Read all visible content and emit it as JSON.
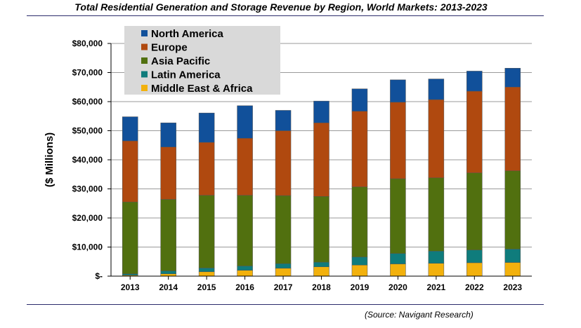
{
  "page": {
    "title": "Total Residential Generation and Storage Revenue by Region, World Markets: 2013-2023",
    "source": "(Source: Navigant Research)"
  },
  "chart_data": {
    "type": "bar",
    "stacked": true,
    "title": "Total Residential Generation and Storage Revenue by Region, World Markets: 2013-2023",
    "xlabel": "",
    "ylabel": "($ Millions)",
    "ylim": [
      0,
      80000
    ],
    "yticks": [
      0,
      10000,
      20000,
      30000,
      40000,
      50000,
      60000,
      70000,
      80000
    ],
    "ytick_labels": [
      "$-",
      "$10,000",
      "$20,000",
      "$30,000",
      "$40,000",
      "$50,000",
      "$60,000",
      "$70,000",
      "$80,000"
    ],
    "grid": true,
    "legend_position": "top-left",
    "categories": [
      "2013",
      "2014",
      "2015",
      "2016",
      "2017",
      "2018",
      "2019",
      "2020",
      "2021",
      "2022",
      "2023"
    ],
    "series": [
      {
        "name": "Middle East & Africa",
        "color": "#f2b10d",
        "values": [
          300,
          800,
          1500,
          2000,
          2700,
          3200,
          3800,
          4200,
          4400,
          4600,
          4700
        ]
      },
      {
        "name": "Latin America",
        "color": "#0f7c7c",
        "values": [
          500,
          1000,
          1300,
          1500,
          1600,
          1600,
          2800,
          3600,
          4200,
          4400,
          4600
        ]
      },
      {
        "name": "Asia Pacific",
        "color": "#51700f",
        "values": [
          24700,
          24600,
          25000,
          24300,
          23400,
          22600,
          24100,
          25700,
          25200,
          26500,
          26900
        ]
      },
      {
        "name": "Europe",
        "color": "#b0490f",
        "values": [
          21000,
          18000,
          18200,
          19600,
          22300,
          25300,
          26000,
          26300,
          26900,
          28100,
          28800
        ]
      },
      {
        "name": "North America",
        "color": "#11509a",
        "values": [
          8300,
          8300,
          10100,
          11200,
          7000,
          7500,
          7700,
          7700,
          7100,
          6900,
          6500
        ]
      }
    ]
  }
}
